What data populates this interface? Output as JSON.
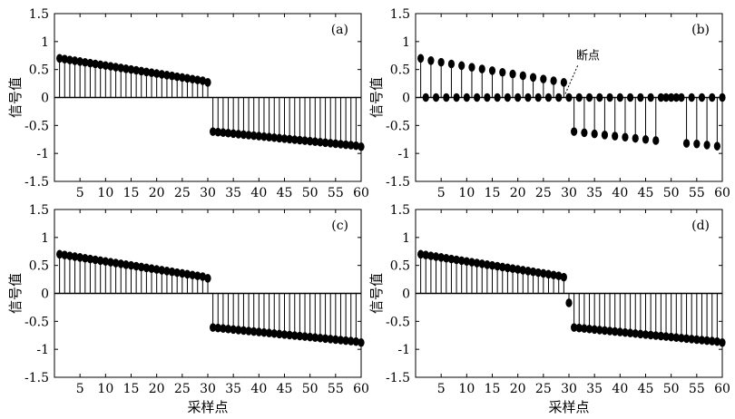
{
  "chart_data": [
    {
      "type": "stem",
      "panel_label": "(a)",
      "xlabel": "",
      "ylabel": "信号值",
      "xlim": [
        0,
        60
      ],
      "ylim": [
        -1.5,
        1.5
      ],
      "xticks": [
        5,
        10,
        15,
        20,
        25,
        30,
        35,
        40,
        45,
        50,
        55,
        60
      ],
      "yticks": [
        1.5,
        1,
        0.5,
        0,
        -0.5,
        -1,
        -1.5
      ],
      "x": [
        1,
        2,
        3,
        4,
        5,
        6,
        7,
        8,
        9,
        10,
        11,
        12,
        13,
        14,
        15,
        16,
        17,
        18,
        19,
        20,
        21,
        22,
        23,
        24,
        25,
        26,
        27,
        28,
        29,
        30,
        31,
        32,
        33,
        34,
        35,
        36,
        37,
        38,
        39,
        40,
        41,
        42,
        43,
        44,
        45,
        46,
        47,
        48,
        49,
        50,
        51,
        52,
        53,
        54,
        55,
        56,
        57,
        58,
        59,
        60
      ],
      "y": [
        0.7,
        0.686,
        0.671,
        0.657,
        0.643,
        0.628,
        0.614,
        0.6,
        0.586,
        0.571,
        0.557,
        0.543,
        0.529,
        0.514,
        0.5,
        0.486,
        0.471,
        0.457,
        0.443,
        0.428,
        0.414,
        0.4,
        0.386,
        0.371,
        0.357,
        0.343,
        0.328,
        0.314,
        0.3,
        0.27,
        -0.61,
        -0.619,
        -0.628,
        -0.637,
        -0.646,
        -0.655,
        -0.664,
        -0.673,
        -0.682,
        -0.691,
        -0.7,
        -0.709,
        -0.718,
        -0.727,
        -0.736,
        -0.745,
        -0.754,
        -0.763,
        -0.772,
        -0.781,
        -0.79,
        -0.799,
        -0.808,
        -0.817,
        -0.826,
        -0.835,
        -0.844,
        -0.853,
        -0.862,
        -0.88
      ]
    },
    {
      "type": "stem",
      "panel_label": "(b)",
      "xlabel": "",
      "ylabel": "信号值",
      "xlim": [
        0,
        60
      ],
      "ylim": [
        -1.5,
        1.5
      ],
      "xticks": [
        5,
        10,
        15,
        20,
        25,
        30,
        35,
        40,
        45,
        50,
        55,
        60
      ],
      "yticks": [
        1.5,
        1,
        0.5,
        0,
        -0.5,
        -1,
        -1.5
      ],
      "annotation": {
        "text": "断点",
        "x": 30,
        "y": 0
      },
      "x": [
        1,
        2,
        3,
        4,
        5,
        6,
        7,
        8,
        9,
        10,
        11,
        12,
        13,
        14,
        15,
        16,
        17,
        18,
        19,
        20,
        21,
        22,
        23,
        24,
        25,
        26,
        27,
        28,
        29,
        30,
        31,
        32,
        33,
        34,
        35,
        36,
        37,
        38,
        39,
        40,
        41,
        42,
        43,
        44,
        45,
        46,
        47,
        48,
        49,
        50,
        51,
        52,
        53,
        54,
        55,
        56,
        57,
        58,
        59,
        60
      ],
      "y": [
        0.7,
        0,
        0.66,
        0,
        0.63,
        0,
        0.6,
        0,
        0.57,
        0,
        0.54,
        0,
        0.51,
        0,
        0.48,
        0,
        0.45,
        0,
        0.42,
        0,
        0.39,
        0,
        0.36,
        0,
        0.33,
        0,
        0.3,
        0,
        0.27,
        0,
        -0.61,
        0,
        -0.63,
        0,
        -0.65,
        0,
        -0.67,
        0,
        -0.69,
        0,
        -0.71,
        0,
        -0.73,
        0,
        -0.75,
        0,
        -0.77,
        0,
        0,
        0,
        0,
        0,
        -0.82,
        0,
        -0.83,
        0,
        -0.85,
        0,
        -0.87,
        0
      ]
    },
    {
      "type": "stem",
      "panel_label": "(c)",
      "xlabel": "采样点",
      "ylabel": "信号值",
      "xlim": [
        0,
        60
      ],
      "ylim": [
        -1.5,
        1.5
      ],
      "xticks": [
        5,
        10,
        15,
        20,
        25,
        30,
        35,
        40,
        45,
        50,
        55,
        60
      ],
      "yticks": [
        1.5,
        1,
        0.5,
        0,
        -0.5,
        -1,
        -1.5
      ],
      "x": [
        1,
        2,
        3,
        4,
        5,
        6,
        7,
        8,
        9,
        10,
        11,
        12,
        13,
        14,
        15,
        16,
        17,
        18,
        19,
        20,
        21,
        22,
        23,
        24,
        25,
        26,
        27,
        28,
        29,
        30,
        31,
        32,
        33,
        34,
        35,
        36,
        37,
        38,
        39,
        40,
        41,
        42,
        43,
        44,
        45,
        46,
        47,
        48,
        49,
        50,
        51,
        52,
        53,
        54,
        55,
        56,
        57,
        58,
        59,
        60
      ],
      "y": [
        0.7,
        0.686,
        0.671,
        0.657,
        0.643,
        0.628,
        0.614,
        0.6,
        0.586,
        0.571,
        0.557,
        0.543,
        0.529,
        0.514,
        0.5,
        0.486,
        0.471,
        0.457,
        0.443,
        0.428,
        0.414,
        0.4,
        0.386,
        0.371,
        0.357,
        0.343,
        0.328,
        0.314,
        0.3,
        0.27,
        -0.61,
        -0.619,
        -0.628,
        -0.637,
        -0.646,
        -0.655,
        -0.664,
        -0.673,
        -0.682,
        -0.691,
        -0.7,
        -0.709,
        -0.718,
        -0.727,
        -0.736,
        -0.745,
        -0.754,
        -0.763,
        -0.772,
        -0.781,
        -0.79,
        -0.799,
        -0.808,
        -0.817,
        -0.826,
        -0.835,
        -0.844,
        -0.853,
        -0.862,
        -0.88
      ]
    },
    {
      "type": "stem",
      "panel_label": "(d)",
      "xlabel": "采样点",
      "ylabel": "信号值",
      "xlim": [
        0,
        60
      ],
      "ylim": [
        -1.5,
        1.5
      ],
      "xticks": [
        5,
        10,
        15,
        20,
        25,
        30,
        35,
        40,
        45,
        50,
        55,
        60
      ],
      "yticks": [
        1.5,
        1,
        0.5,
        0,
        -0.5,
        -1,
        -1.5
      ],
      "x": [
        1,
        2,
        3,
        4,
        5,
        6,
        7,
        8,
        9,
        10,
        11,
        12,
        13,
        14,
        15,
        16,
        17,
        18,
        19,
        20,
        21,
        22,
        23,
        24,
        25,
        26,
        27,
        28,
        29,
        30,
        31,
        32,
        33,
        34,
        35,
        36,
        37,
        38,
        39,
        40,
        41,
        42,
        43,
        44,
        45,
        46,
        47,
        48,
        49,
        50,
        51,
        52,
        53,
        54,
        55,
        56,
        57,
        58,
        59,
        60
      ],
      "y": [
        0.7,
        0.686,
        0.671,
        0.657,
        0.643,
        0.628,
        0.614,
        0.6,
        0.586,
        0.571,
        0.557,
        0.543,
        0.529,
        0.514,
        0.5,
        0.486,
        0.471,
        0.457,
        0.443,
        0.428,
        0.414,
        0.4,
        0.386,
        0.371,
        0.357,
        0.343,
        0.328,
        0.314,
        0.29,
        -0.17,
        -0.61,
        -0.619,
        -0.628,
        -0.637,
        -0.646,
        -0.655,
        -0.664,
        -0.673,
        -0.682,
        -0.691,
        -0.7,
        -0.709,
        -0.718,
        -0.727,
        -0.736,
        -0.745,
        -0.754,
        -0.763,
        -0.772,
        -0.781,
        -0.79,
        -0.799,
        -0.808,
        -0.817,
        -0.826,
        -0.835,
        -0.844,
        -0.853,
        -0.862,
        -0.88
      ]
    }
  ]
}
